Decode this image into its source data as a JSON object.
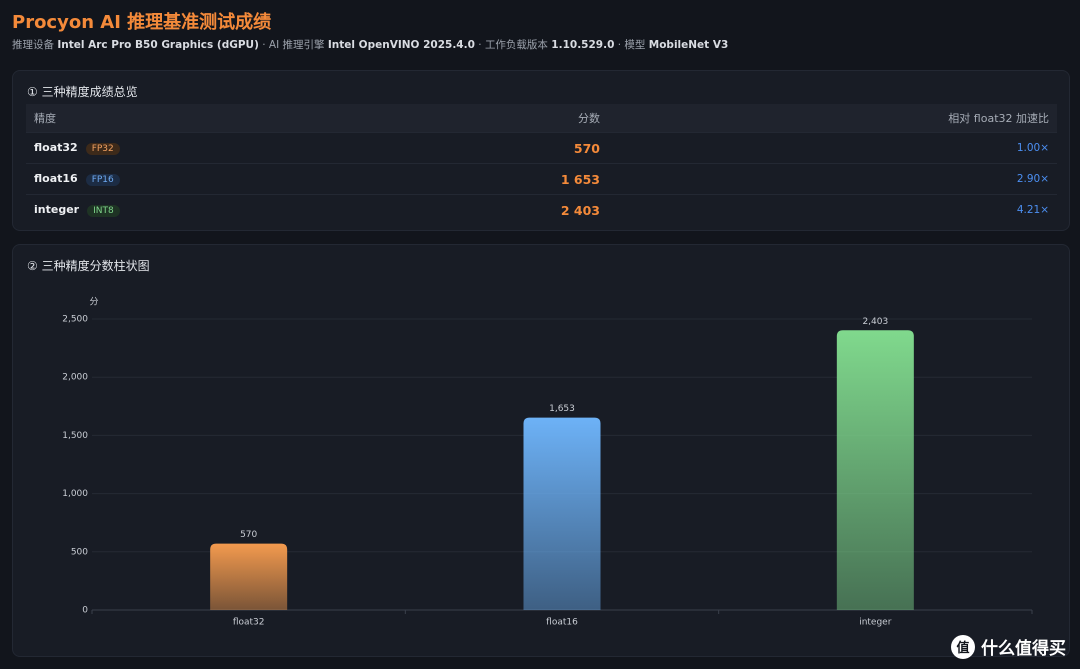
{
  "header": {
    "title": "Procyon AI 推理基准测试成绩",
    "separator": "·",
    "meta": [
      {
        "label": "推理设备",
        "value": "Intel Arc Pro B50 Graphics (dGPU)"
      },
      {
        "label": "AI 推理引擎",
        "value": "Intel OpenVINO 2025.4.0"
      },
      {
        "label": "工作负载版本",
        "value": "1.10.529.0"
      },
      {
        "label": "模型",
        "value": "MobileNet V3"
      }
    ]
  },
  "table": {
    "title": "① 三种精度成绩总览",
    "columns": [
      "精度",
      "分数",
      "相对 float32 加速比"
    ],
    "rows": [
      {
        "name": "float32",
        "badge": "FP32",
        "score": "570",
        "ratio": "1.00×"
      },
      {
        "name": "float16",
        "badge": "FP16",
        "score": "1 653",
        "ratio": "2.90×"
      },
      {
        "name": "integer",
        "badge": "INT8",
        "score": "2 403",
        "ratio": "4.21×"
      }
    ]
  },
  "chart_data": {
    "type": "bar",
    "title": "② 三种精度分数柱状图",
    "y_label": "分",
    "categories": [
      "float32",
      "float16",
      "integer"
    ],
    "values": [
      570,
      1653,
      2403
    ],
    "value_labels": [
      "570",
      "1,653",
      "2,403"
    ],
    "colors": [
      "#f39a4e",
      "#6db2f7",
      "#80d98d"
    ],
    "ylim": [
      0,
      2500
    ],
    "yticks": [
      0,
      500,
      {
        "value": 1000,
        "label": "1,000"
      },
      {
        "value": 1500,
        "label": "1,500"
      },
      {
        "value": 2000,
        "label": "2,000"
      },
      {
        "value": 2500,
        "label": "2,500"
      }
    ],
    "grid": true
  },
  "watermark": {
    "icon": "值",
    "text": "什么值得买"
  }
}
